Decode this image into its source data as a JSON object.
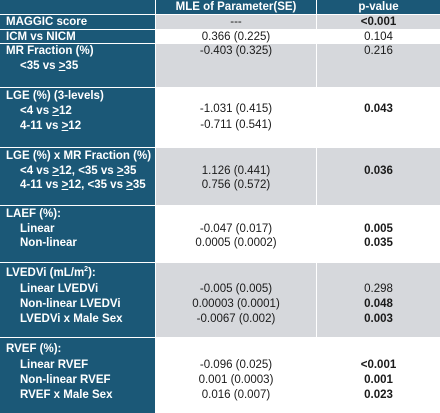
{
  "header": {
    "col1": "",
    "col2": "MLE of Parameter(SE)",
    "col3": "p-value"
  },
  "rows": [
    {
      "labels": [
        "MAGGIC score"
      ],
      "mle": [
        "---"
      ],
      "p": [
        {
          "v": "<0.001",
          "bold": true
        }
      ]
    },
    {
      "labels": [
        "ICM vs NICM"
      ],
      "mle": [
        "0.366 (0.225)"
      ],
      "p": [
        {
          "v": "0.104",
          "bold": false
        }
      ]
    },
    {
      "labels": [
        "MR Fraction (%)",
        "<35 vs >35"
      ],
      "mle": [
        "-0.403 (0.325)"
      ],
      "p": [
        {
          "v": "0.216",
          "bold": false
        }
      ]
    },
    {
      "labels": [
        "LGE (%) (3-levels)",
        "<4 vs >12",
        "4-11 vs >12"
      ],
      "mle": [
        "-1.031 (0.415)",
        "-0.711 (0.541)"
      ],
      "p": [
        {
          "v": "0.043",
          "bold": true
        }
      ]
    },
    {
      "labels": [
        "LGE (%) x MR Fraction (%)",
        "<4 vs >12, <35 vs >35",
        "4-11 vs >12, <35 vs >35"
      ],
      "mle": [
        "1.126 (0.441)",
        "0.756 (0.572)"
      ],
      "p": [
        {
          "v": "0.036",
          "bold": true
        }
      ]
    },
    {
      "labels": [
        "LAEF (%):",
        "Linear",
        "Non-linear"
      ],
      "mle": [
        "-0.047 (0.017)",
        "0.0005 (0.0002)"
      ],
      "p": [
        {
          "v": "0.005",
          "bold": true
        },
        {
          "v": "0.035",
          "bold": true
        }
      ]
    },
    {
      "labels": [
        "LVEDVi (mL/m²):",
        "Linear LVEDVi",
        "Non-linear LVEDVi",
        "LVEDVi x Male Sex"
      ],
      "mle": [
        "-0.005 (0.005)",
        "0.00003 (0.0001)",
        "-0.0067 (0.002)"
      ],
      "p": [
        {
          "v": "0.298",
          "bold": false
        },
        {
          "v": "0.048",
          "bold": true
        },
        {
          "v": "0.003",
          "bold": true
        }
      ]
    },
    {
      "labels": [
        "RVEF (%):",
        "Linear RVEF",
        "Non-linear RVEF",
        "RVEF x Male Sex"
      ],
      "mle": [
        "-0.096 (0.025)",
        "0.001 (0.0003)",
        "0.016 (0.007)"
      ],
      "p": [
        {
          "v": "<0.001",
          "bold": true
        },
        {
          "v": "0.001",
          "bold": true
        },
        {
          "v": "0.023",
          "bold": true
        }
      ]
    }
  ],
  "colors": {
    "label_column": "#1b5877",
    "shaded_row": "#d6d8dc",
    "white_row": "#ffffff"
  }
}
